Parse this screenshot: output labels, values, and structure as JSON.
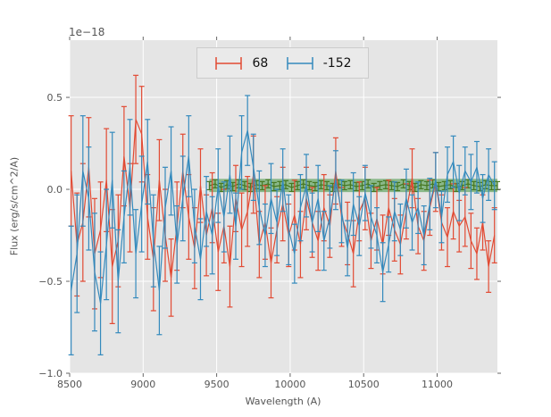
{
  "figure": {
    "background": "#ffffff",
    "axes_background": "#e5e5e5",
    "grid_color": "#ffffff",
    "tick_mark_color": "#666666",
    "tick_label_color": "#555555",
    "legend_background": "#eaeaea",
    "legend_border": "#cccccc"
  },
  "chart_data": {
    "type": "line-errorbar",
    "title": "",
    "offset_text": "1e−18",
    "xlabel": "Wavelength (A)",
    "ylabel": "Flux (erg/s/cm^2/A)",
    "xlim": [
      8500,
      11410
    ],
    "ylim": [
      -1.0,
      0.811
    ],
    "grid": true,
    "xticks": {
      "values": [
        8500,
        9000,
        9500,
        10000,
        10500,
        11000
      ],
      "labels": [
        "8500",
        "9000",
        "9500",
        "10000",
        "10500",
        "11000"
      ]
    },
    "yticks": {
      "values": [
        -1.0,
        -0.5,
        0.0,
        0.5
      ],
      "labels": [
        "−1.0",
        "−0.5",
        "0.0",
        "0.5"
      ]
    },
    "legend": {
      "position": "upper center"
    },
    "band": {
      "x0": 9450,
      "x1": 11410,
      "y0": -0.015,
      "y1": 0.057,
      "color": "#2e8b2e",
      "opacity": 0.5
    },
    "x": [
      8510,
      8550,
      8590,
      8630,
      8670,
      8710,
      8750,
      8790,
      8830,
      8870,
      8910,
      8950,
      8990,
      9030,
      9070,
      9110,
      9150,
      9190,
      9230,
      9270,
      9310,
      9350,
      9390,
      9430,
      9470,
      9510,
      9550,
      9590,
      9630,
      9670,
      9710,
      9750,
      9790,
      9830,
      9870,
      9910,
      9950,
      9990,
      10030,
      10070,
      10110,
      10150,
      10190,
      10230,
      10270,
      10310,
      10350,
      10390,
      10430,
      10470,
      10510,
      10550,
      10590,
      10630,
      10670,
      10710,
      10750,
      10790,
      10830,
      10870,
      10910,
      10950,
      10990,
      11030,
      11070,
      11110,
      11150,
      11190,
      11230,
      11270,
      11310,
      11350,
      11390
    ],
    "series": [
      {
        "name": "68",
        "color": "#E24A33",
        "in_legend": true,
        "y": [
          0.1,
          -0.3,
          -0.18,
          0.12,
          -0.35,
          -0.22,
          0.05,
          -0.42,
          -0.28,
          0.18,
          -0.1,
          0.38,
          0.3,
          -0.15,
          -0.38,
          0.05,
          -0.25,
          -0.48,
          -0.2,
          0.1,
          -0.15,
          -0.32,
          0.02,
          -0.25,
          -0.1,
          -0.34,
          -0.2,
          -0.42,
          -0.05,
          -0.22,
          -0.12,
          0.08,
          -0.3,
          -0.18,
          -0.4,
          -0.22,
          -0.08,
          -0.25,
          -0.14,
          -0.3,
          -0.05,
          -0.18,
          -0.28,
          -0.1,
          -0.2,
          0.1,
          -0.15,
          -0.24,
          -0.35,
          -0.12,
          -0.05,
          -0.28,
          -0.16,
          -0.3,
          -0.1,
          -0.22,
          -0.3,
          -0.12,
          0.06,
          -0.2,
          -0.28,
          -0.1,
          0.04,
          -0.18,
          -0.26,
          -0.12,
          -0.2,
          -0.15,
          -0.28,
          -0.35,
          -0.18,
          -0.42,
          -0.25
        ],
        "yerr": [
          0.3,
          0.28,
          0.32,
          0.27,
          0.3,
          0.26,
          0.28,
          0.31,
          0.25,
          0.27,
          0.24,
          0.24,
          0.26,
          0.23,
          0.28,
          0.22,
          0.25,
          0.21,
          0.24,
          0.2,
          0.23,
          0.22,
          0.2,
          0.22,
          0.19,
          0.21,
          0.2,
          0.22,
          0.18,
          0.2,
          0.19,
          0.21,
          0.18,
          0.2,
          0.19,
          0.18,
          0.2,
          0.17,
          0.19,
          0.18,
          0.17,
          0.19,
          0.16,
          0.18,
          0.17,
          0.18,
          0.16,
          0.17,
          0.18,
          0.16,
          0.17,
          0.15,
          0.17,
          0.16,
          0.15,
          0.17,
          0.16,
          0.15,
          0.16,
          0.15,
          0.16,
          0.15,
          0.16,
          0.15,
          0.16,
          0.15,
          0.14,
          0.16,
          0.15,
          0.14,
          0.15,
          0.14,
          0.15
        ]
      },
      {
        "name": "-152",
        "color": "#348ABD",
        "in_legend": true,
        "y": [
          -0.55,
          -0.35,
          0.1,
          -0.05,
          -0.45,
          -0.62,
          -0.3,
          0.05,
          -0.5,
          -0.15,
          0.12,
          -0.35,
          -0.08,
          0.15,
          -0.28,
          -0.55,
          -0.1,
          0.1,
          -0.3,
          -0.05,
          0.18,
          -0.2,
          -0.38,
          -0.12,
          -0.25,
          0.02,
          -0.15,
          0.08,
          -0.2,
          0.2,
          0.32,
          0.12,
          -0.1,
          -0.25,
          -0.05,
          -0.18,
          0.05,
          -0.22,
          -0.35,
          -0.1,
          0.02,
          -0.18,
          -0.05,
          -0.28,
          -0.15,
          0.05,
          -0.12,
          -0.32,
          -0.08,
          -0.2,
          -0.02,
          -0.15,
          -0.25,
          -0.45,
          -0.3,
          -0.12,
          -0.22,
          -0.05,
          -0.18,
          -0.1,
          -0.25,
          -0.08,
          0.05,
          -0.15,
          0.08,
          0.15,
          -0.02,
          0.1,
          0.04,
          0.12,
          -0.05,
          0.08,
          0.02
        ],
        "yerr": [
          0.35,
          0.32,
          0.3,
          0.28,
          0.32,
          0.28,
          0.3,
          0.26,
          0.28,
          0.25,
          0.26,
          0.24,
          0.26,
          0.23,
          0.25,
          0.24,
          0.22,
          0.24,
          0.21,
          0.23,
          0.22,
          0.2,
          0.22,
          0.19,
          0.21,
          0.2,
          0.19,
          0.21,
          0.18,
          0.2,
          0.19,
          0.18,
          0.2,
          0.17,
          0.19,
          0.18,
          0.17,
          0.19,
          0.16,
          0.18,
          0.17,
          0.16,
          0.18,
          0.16,
          0.17,
          0.16,
          0.17,
          0.15,
          0.17,
          0.16,
          0.15,
          0.17,
          0.15,
          0.16,
          0.15,
          0.16,
          0.14,
          0.16,
          0.15,
          0.14,
          0.16,
          0.14,
          0.15,
          0.14,
          0.15,
          0.14,
          0.15,
          0.13,
          0.15,
          0.14,
          0.13,
          0.14,
          0.13
        ]
      },
      {
        "name": "zero-band-series",
        "color": "#467821",
        "in_legend": false,
        "x": [
          9450,
          9490,
          9530,
          9570,
          9610,
          9650,
          9690,
          9730,
          9770,
          9810,
          9850,
          9890,
          9930,
          9970,
          10010,
          10050,
          10090,
          10130,
          10170,
          10210,
          10250,
          10290,
          10330,
          10370,
          10410,
          10450,
          10490,
          10530,
          10570,
          10610,
          10650,
          10690,
          10730,
          10770,
          10810,
          10850,
          10890,
          10930,
          10970,
          11010,
          11050,
          11090,
          11130,
          11170,
          11210,
          11250,
          11290,
          11330,
          11370,
          11410
        ],
        "y": [
          0.02,
          0.03,
          0.01,
          0.025,
          0.015,
          0.03,
          0.02,
          0.01,
          0.025,
          0.02,
          0.03,
          0.015,
          0.02,
          0.025,
          0.01,
          0.02,
          0.03,
          0.02,
          0.015,
          0.025,
          0.02,
          0.01,
          0.03,
          0.02,
          0.025,
          0.015,
          0.02,
          0.03,
          0.01,
          0.02,
          0.025,
          0.02,
          0.015,
          0.03,
          0.02,
          0.01,
          0.025,
          0.02,
          0.03,
          0.015,
          0.02,
          0.025,
          0.01,
          0.02,
          0.03,
          0.02,
          0.015,
          0.025,
          0.02,
          0.02
        ],
        "yerr_const": 0.022
      }
    ]
  }
}
